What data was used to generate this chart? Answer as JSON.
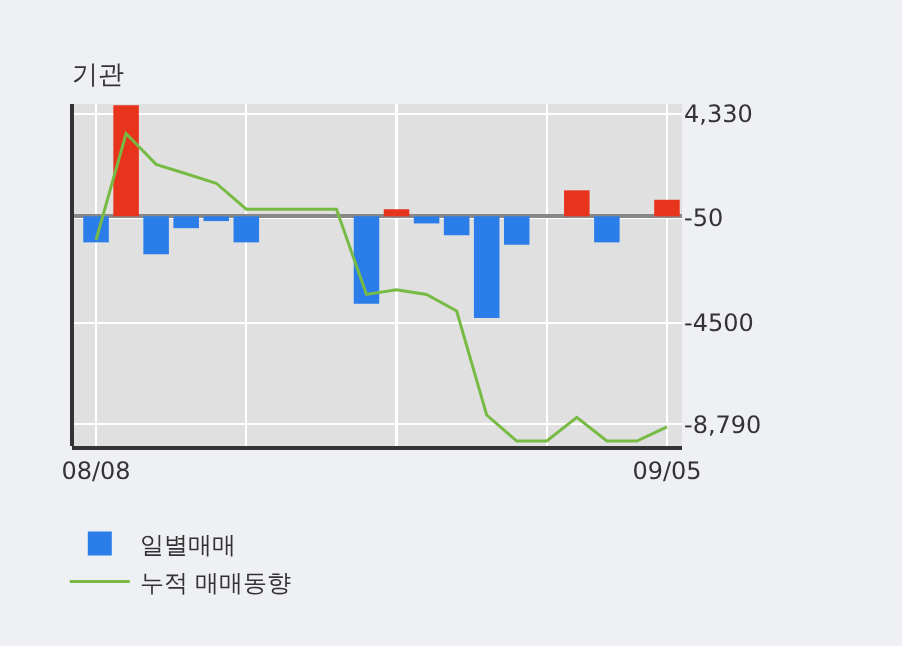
{
  "chart_data": {
    "type": "bar",
    "title": "기관",
    "categories": [
      "08/08",
      null,
      null,
      null,
      null,
      null,
      null,
      null,
      null,
      null,
      null,
      null,
      null,
      null,
      null,
      null,
      null,
      null,
      null,
      "09/05"
    ],
    "series": [
      {
        "name": "일별매매",
        "colors": [
          "#2b7de9",
          "#e8341c",
          "#2b7de9",
          "#2b7de9",
          "#2b7de9",
          "#2b7de9",
          "#2b7de9",
          "#2b7de9",
          "#2b7de9",
          "#2b7de9",
          "#e8341c",
          "#2b7de9",
          "#2b7de9",
          "#2b7de9",
          "#2b7de9",
          "#2b7de9",
          "#e8341c",
          "#2b7de9",
          "#2b7de9",
          "#e8341c"
        ],
        "values": [
          -1100,
          4700,
          -1600,
          -500,
          -200,
          -1100,
          0,
          0,
          0,
          -3700,
          300,
          -300,
          -800,
          -4300,
          -1200,
          0,
          1100,
          -1100,
          0,
          700
        ]
      },
      {
        "name": "누적 매매동향",
        "type": "line",
        "color": "#77bb44",
        "values": [
          -1000,
          3500,
          2200,
          1800,
          1400,
          300,
          300,
          300,
          300,
          -3300,
          -3100,
          -3300,
          -4000,
          -8400,
          -9500,
          -9500,
          -8500,
          -9500,
          -9500,
          -8900
        ]
      }
    ],
    "ylim": [
      -9710,
      4750
    ],
    "yticks": [
      {
        "value": 4330,
        "label": "4,330"
      },
      -50,
      -4500,
      {
        "value": -8790,
        "label": "-8,790"
      }
    ],
    "grid": true,
    "legend": "bottom",
    "marker": "none",
    "line_style": "solid"
  }
}
